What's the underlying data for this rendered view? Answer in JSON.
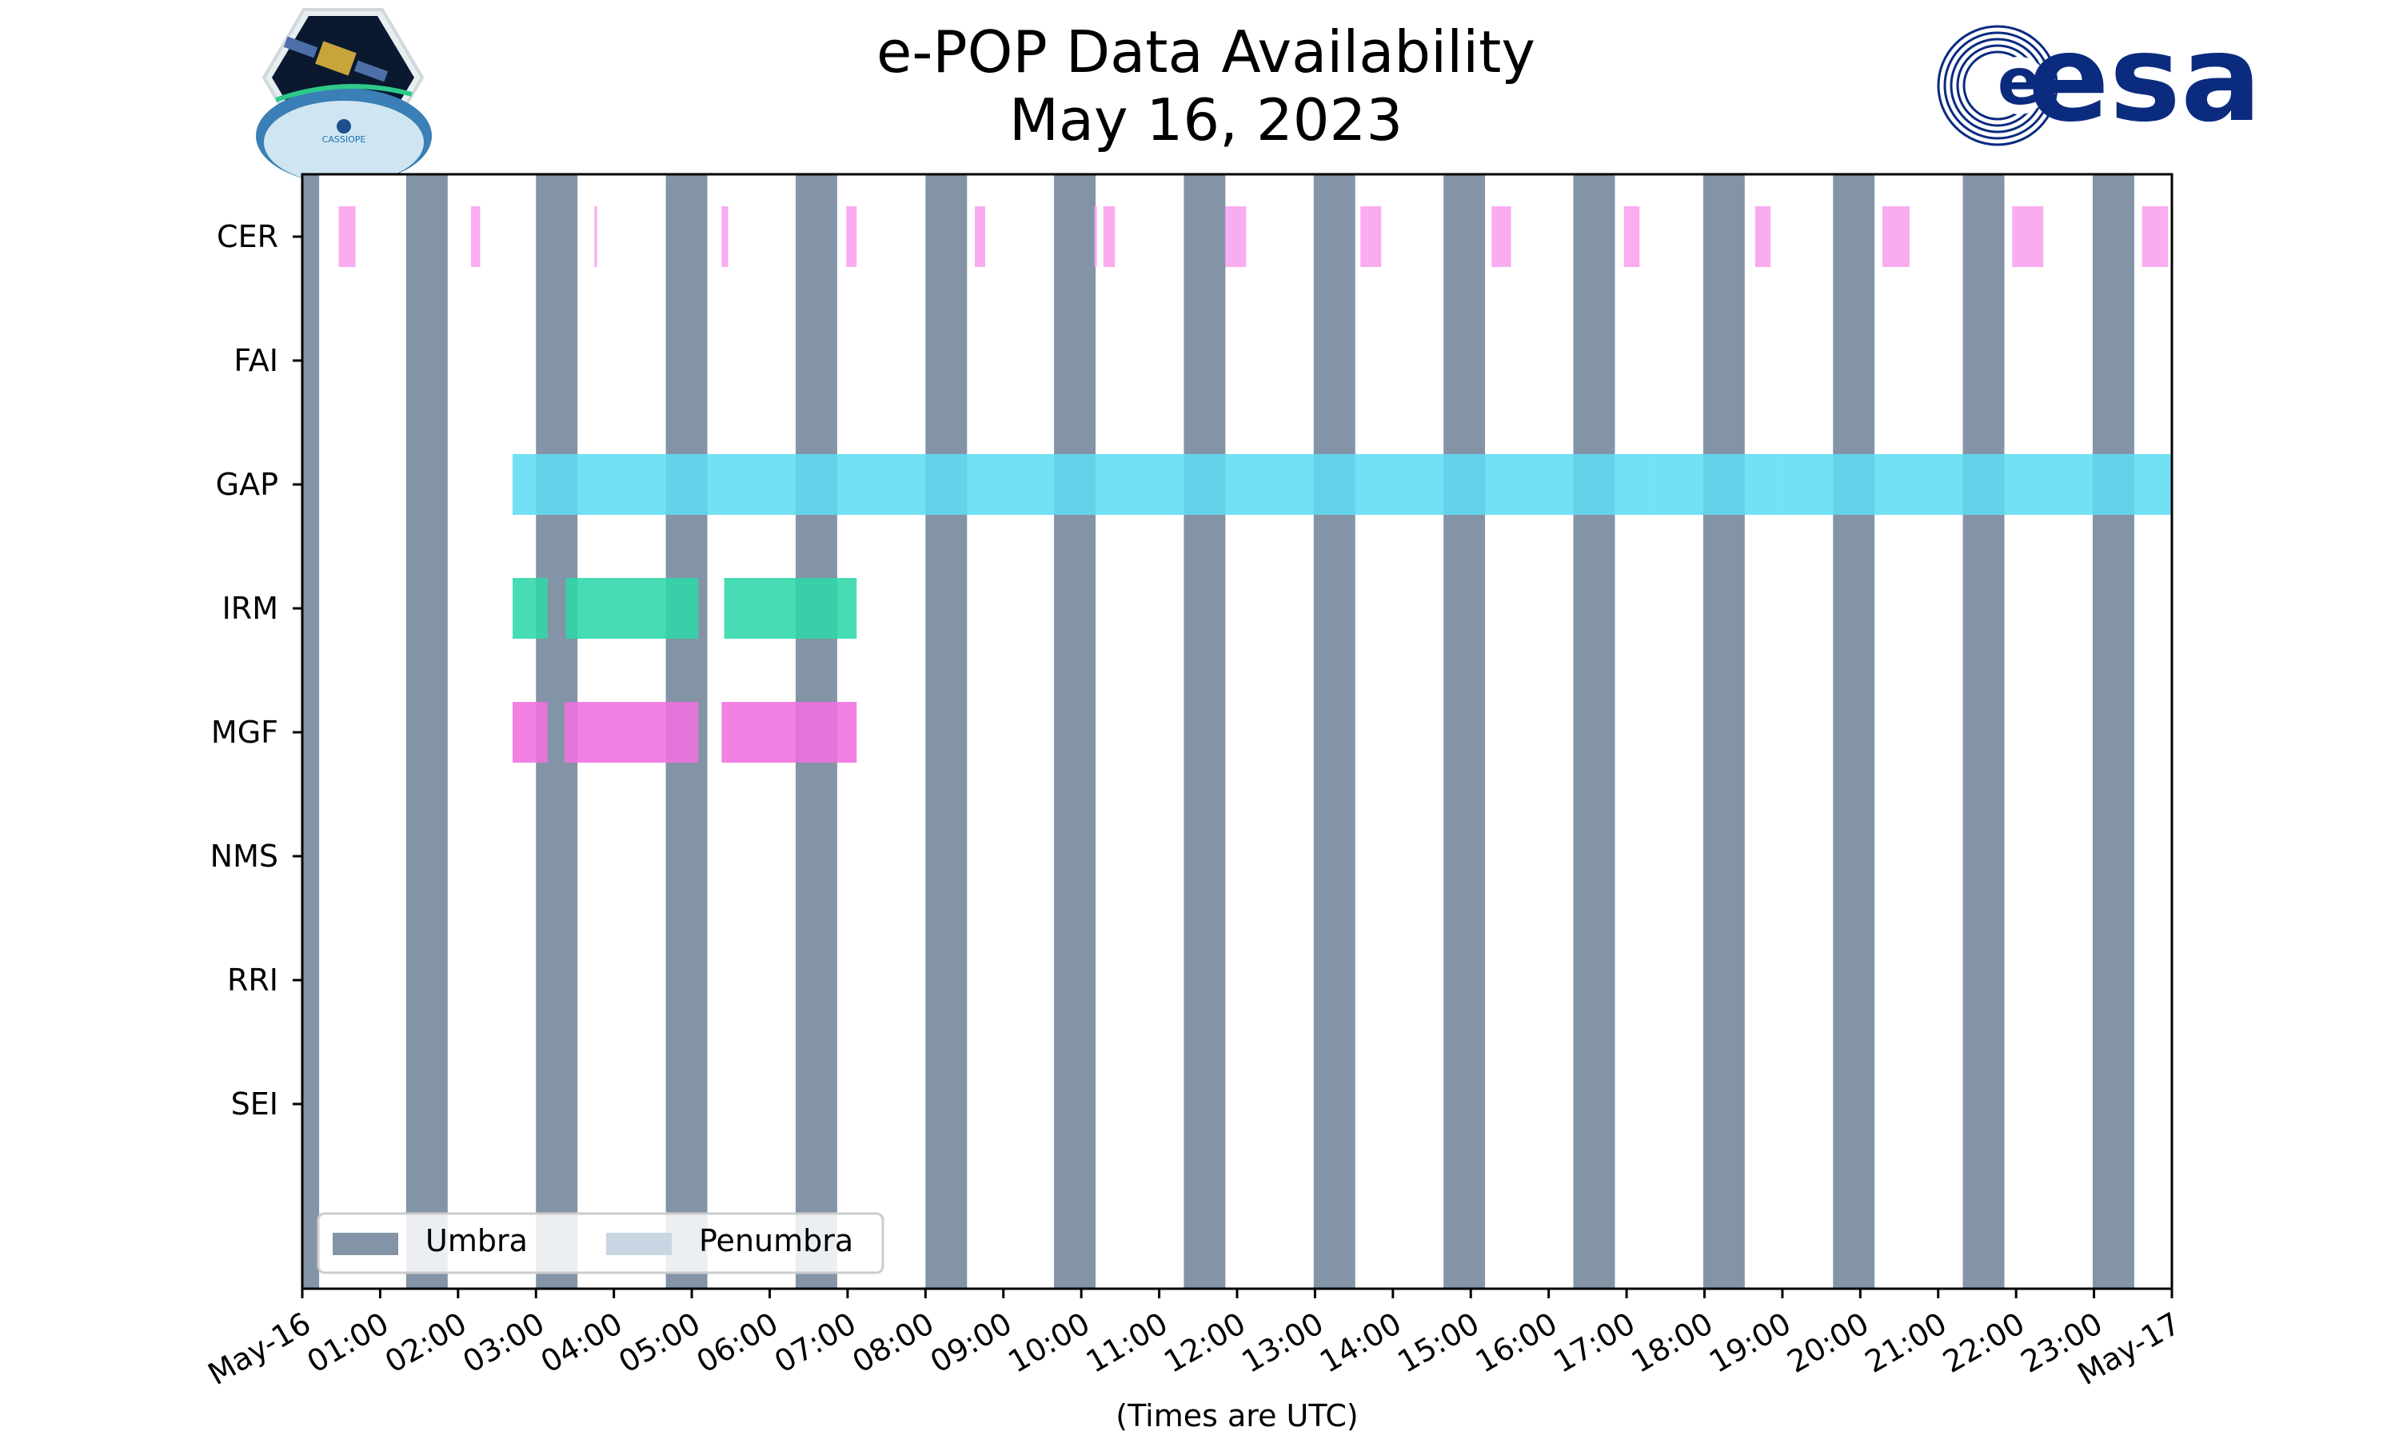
{
  "logos": {
    "cassiope_text": "CASSIOPE",
    "esa_text": "esa"
  },
  "chart_data": {
    "type": "timeline",
    "title": "e-POP Data Availability",
    "subtitle": "May 16, 2023",
    "xlabel": "(Times are UTC)",
    "xlim": [
      "2023-05-16T00:00",
      "2023-05-17T00:00"
    ],
    "x_tick_labels": [
      "May-16",
      "01:00",
      "02:00",
      "03:00",
      "04:00",
      "05:00",
      "06:00",
      "07:00",
      "08:00",
      "09:00",
      "10:00",
      "11:00",
      "12:00",
      "13:00",
      "14:00",
      "15:00",
      "16:00",
      "17:00",
      "18:00",
      "19:00",
      "20:00",
      "21:00",
      "22:00",
      "23:00",
      "May-17"
    ],
    "instruments": [
      "CER",
      "FAI",
      "GAP",
      "IRM",
      "MGF",
      "NMS",
      "RRI",
      "SEI"
    ],
    "legend": {
      "placement": "lower-left",
      "entries": [
        {
          "label": "Umbra",
          "color": "#8394a6"
        },
        {
          "label": "Penumbra",
          "color": "#c9d5e3"
        }
      ]
    },
    "umbra": [
      [
        "00:00",
        "00:13"
      ],
      [
        "01:20",
        "01:52"
      ],
      [
        "03:00",
        "03:32"
      ],
      [
        "04:40",
        "05:12"
      ],
      [
        "06:20",
        "06:52"
      ],
      [
        "08:00",
        "08:32"
      ],
      [
        "09:39",
        "10:11"
      ],
      [
        "11:19",
        "11:51"
      ],
      [
        "12:59",
        "13:31"
      ],
      [
        "14:39",
        "15:11"
      ],
      [
        "16:19",
        "16:51"
      ],
      [
        "17:59",
        "18:31"
      ],
      [
        "19:39",
        "20:11"
      ],
      [
        "21:19",
        "21:51"
      ],
      [
        "22:59",
        "23:31"
      ]
    ],
    "series": [
      {
        "name": "CER",
        "color": "#f9a0ef",
        "intervals": [
          [
            "00:28",
            "00:41"
          ],
          [
            "02:10",
            "02:17"
          ],
          [
            "03:45",
            "03:47"
          ],
          [
            "05:23",
            "05:28"
          ],
          [
            "06:59",
            "07:07"
          ],
          [
            "08:38",
            "08:46"
          ],
          [
            "10:10",
            "10:12"
          ],
          [
            "10:17",
            "10:26"
          ],
          [
            "11:51",
            "11:53"
          ],
          [
            "11:53",
            "12:07"
          ],
          [
            "13:35",
            "13:51"
          ],
          [
            "15:16",
            "15:31"
          ],
          [
            "16:58",
            "17:10"
          ],
          [
            "18:39",
            "18:51"
          ],
          [
            "20:17",
            "20:38"
          ],
          [
            "21:57",
            "22:21"
          ],
          [
            "23:37",
            "23:57"
          ]
        ]
      },
      {
        "name": "FAI",
        "color": "#aaaaaa",
        "intervals": []
      },
      {
        "name": "GAP",
        "color": "#5edcf4",
        "intervals": [
          [
            "02:42",
            "17:20"
          ],
          [
            "17:20",
            "19:00"
          ],
          [
            "19:00",
            "24:00"
          ]
        ]
      },
      {
        "name": "IRM",
        "color": "#2fd7aa",
        "intervals": [
          [
            "02:42",
            "03:09"
          ],
          [
            "03:23",
            "05:05"
          ],
          [
            "05:25",
            "07:07"
          ]
        ]
      },
      {
        "name": "MGF",
        "color": "#f070e0",
        "intervals": [
          [
            "02:42",
            "03:09"
          ],
          [
            "03:22",
            "05:05"
          ],
          [
            "05:23",
            "07:07"
          ]
        ]
      },
      {
        "name": "NMS",
        "color": "#aaaaaa",
        "intervals": []
      },
      {
        "name": "RRI",
        "color": "#aaaaaa",
        "intervals": []
      },
      {
        "name": "SEI",
        "color": "#aaaaaa",
        "intervals": []
      }
    ]
  }
}
